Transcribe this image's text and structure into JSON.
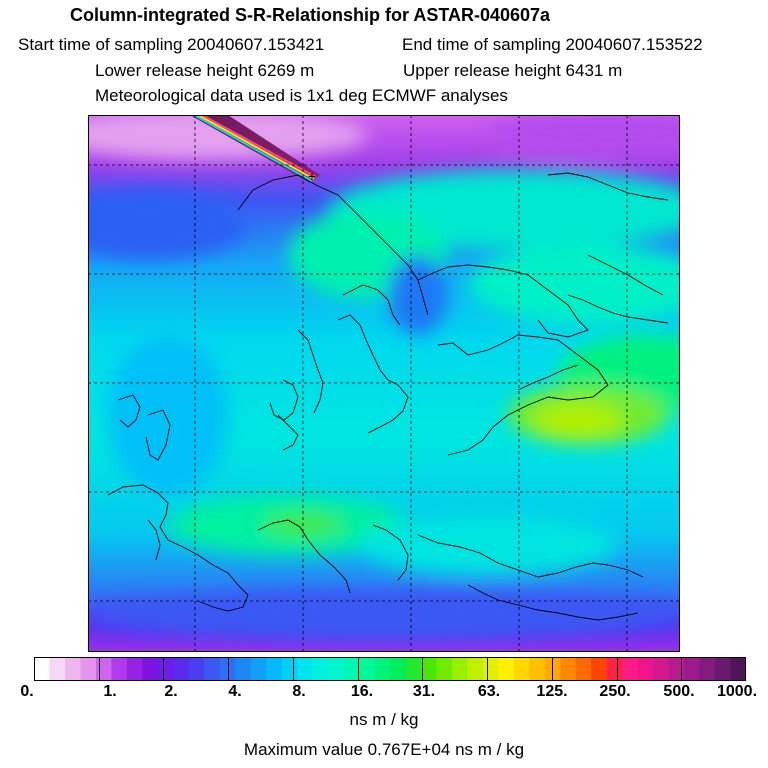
{
  "header": {
    "title": "Column-integrated S-R-Relationship for ASTAR-040607a",
    "start_time": "Start time of sampling 20040607.153421",
    "end_time": "End time of sampling 20040607.153522",
    "lower_height": "Lower release height 6269 m",
    "upper_height": "Upper release height 6431 m",
    "met_data": "Meteorological data used is 1x1 deg ECMWF analyses"
  },
  "colorbar": {
    "ticks": [
      "0.",
      "1.",
      "2.",
      "4.",
      "8.",
      "16.",
      "31.",
      "63.",
      "125.",
      "250.",
      "500.",
      "1000."
    ],
    "colors": [
      "#ffffff",
      "#f6d8f6",
      "#eeb8ee",
      "#e693ee",
      "#cc66ee",
      "#b13bea",
      "#9622e6",
      "#7b14e0",
      "#6a1ee8",
      "#5a2aee",
      "#4a3ef2",
      "#3a58f4",
      "#2a70f4",
      "#1c88f6",
      "#10a0f8",
      "#06b8fa",
      "#00d0f6",
      "#00e4ee",
      "#00f0e0",
      "#00f6cc",
      "#00f8b0",
      "#00f896",
      "#00f47a",
      "#00ee5e",
      "#22e830",
      "#48e800",
      "#70ec00",
      "#98f000",
      "#c0f000",
      "#e0f000",
      "#fff000",
      "#ffd800",
      "#ffc000",
      "#ffa800",
      "#ff8800",
      "#ff6a00",
      "#ff4400",
      "#ff2244",
      "#ff1a88",
      "#f0148c",
      "#d41890",
      "#b81a90",
      "#9c1a8c",
      "#821a80",
      "#681a70",
      "#4e1656"
    ],
    "units": "ns m / kg",
    "max_value": "Maximum value  0.767E+04 ns m / kg"
  },
  "map": {
    "gridlines": "on",
    "coastlines": "Europe",
    "release_track": "diagonal band from top-left to sampling point",
    "frame_color": "#000000"
  }
}
